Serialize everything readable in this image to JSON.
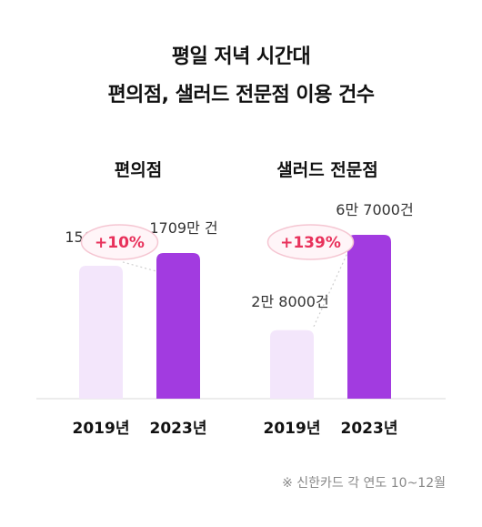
{
  "title_line1": "평일 저녁 시간대",
  "title_line2": "편의점, 샐러드 전문점 이용 건수",
  "footnote": "※ 신한카드 각 연도 10~12월",
  "colors": {
    "bar_2019": "#f3e6fb",
    "bar_2023": "#a23be0",
    "pct_text": "#e8315b",
    "pct_ellipse": "#f5c6d2"
  },
  "chart_data": [
    {
      "type": "bar",
      "title": "편의점",
      "categories": [
        "2019년",
        "2023년"
      ],
      "values": [
        1560,
        1709
      ],
      "value_labels": [
        "1560만 건",
        "1709만  건"
      ],
      "change_label": "+10%",
      "unit": "만 건"
    },
    {
      "type": "bar",
      "title": "샐러드 전문점",
      "categories": [
        "2019년",
        "2023년"
      ],
      "values": [
        2.8,
        6.7
      ],
      "value_labels": [
        "2만 8000건",
        "6만 7000건"
      ],
      "change_label": "+139%",
      "unit": "만 건"
    }
  ]
}
